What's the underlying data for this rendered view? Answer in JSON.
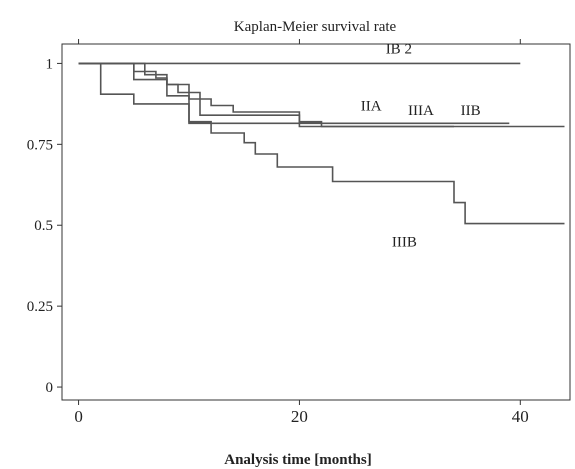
{
  "chart_data": {
    "type": "line",
    "step": true,
    "title": "Kaplan-Meier survival rate",
    "xlabel": "Analysis time [months]",
    "ylabel": "",
    "xlim": [
      -1.5,
      44.5
    ],
    "ylim": [
      -0.04,
      1.06
    ],
    "xticks": [
      0,
      20,
      40
    ],
    "yticks": [
      0,
      0.25,
      0.5,
      0.75,
      1
    ],
    "ytick_labels": [
      "0",
      "0.25",
      "0.5",
      "0.75",
      "1"
    ],
    "grid": false,
    "legend": "none",
    "series": [
      {
        "name": "IB 2",
        "x": [
          0,
          20,
          20,
          40
        ],
        "y": [
          1.0,
          1.0,
          1.0,
          1.0
        ]
      },
      {
        "name": "IIA",
        "x": [
          0,
          5,
          7,
          8,
          9,
          10,
          12,
          14,
          20,
          22,
          34
        ],
        "y": [
          1.0,
          0.975,
          0.955,
          0.935,
          0.91,
          0.89,
          0.87,
          0.85,
          0.82,
          0.805,
          0.805
        ]
      },
      {
        "name": "IIIA",
        "x": [
          0,
          2,
          5,
          10,
          20,
          20,
          44
        ],
        "y": [
          1.0,
          0.905,
          0.875,
          0.815,
          0.815,
          0.805,
          0.805
        ]
      },
      {
        "name": "IIB",
        "x": [
          0,
          6,
          8,
          10,
          11,
          20,
          39
        ],
        "y": [
          1.0,
          0.965,
          0.935,
          0.91,
          0.84,
          0.815,
          0.815
        ]
      },
      {
        "name": "IIIB",
        "x": [
          0,
          5,
          8,
          10,
          12,
          15,
          16,
          18,
          23,
          34,
          35,
          44
        ],
        "y": [
          1.0,
          0.95,
          0.9,
          0.82,
          0.785,
          0.755,
          0.72,
          0.68,
          0.635,
          0.57,
          0.505,
          0.505
        ]
      }
    ],
    "series_labels": [
      {
        "text": "IB 2",
        "x": 29,
        "y": 1.03
      },
      {
        "text": "IIA",
        "x": 26.5,
        "y": 0.855
      },
      {
        "text": "IIIA",
        "x": 31,
        "y": 0.84
      },
      {
        "text": "IIB",
        "x": 35.5,
        "y": 0.84
      },
      {
        "text": "IIIB",
        "x": 29.5,
        "y": 0.435
      }
    ]
  }
}
